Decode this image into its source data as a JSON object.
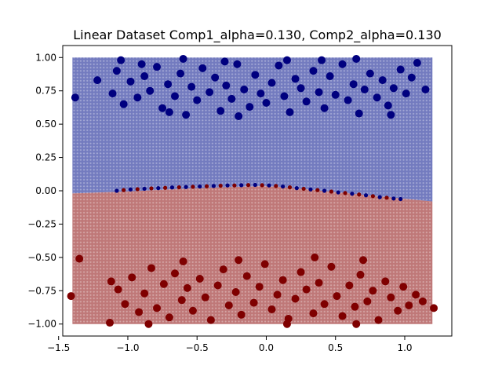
{
  "chart_data": {
    "type": "scatter",
    "title": "Linear Dataset Comp1_alpha=0.130, Comp2_alpha=0.130",
    "xlabel": "",
    "ylabel": "",
    "xlim": [
      -1.47,
      1.34
    ],
    "ylim": [
      -1.09,
      1.09
    ],
    "x_ticks": [
      -1.5,
      -1.0,
      -0.5,
      0.0,
      0.5,
      1.0
    ],
    "x_tick_labels": [
      "−1.5",
      "−1.0",
      "−0.5",
      "0.0",
      "0.5",
      "1.0"
    ],
    "y_ticks": [
      -1.0,
      -0.75,
      -0.5,
      -0.25,
      0.0,
      0.25,
      0.5,
      0.75,
      1.0
    ],
    "y_tick_labels": [
      "−1.00",
      "−0.75",
      "−0.50",
      "−0.25",
      "0.00",
      "0.25",
      "0.50",
      "0.75",
      "1.00"
    ],
    "grid": false,
    "legend": "none",
    "background_grid": {
      "x_range": [
        -1.4,
        1.2
      ],
      "y_range": [
        -1.0,
        1.0
      ],
      "classes": [
        "class 0 (blue)",
        "class 1 (red)"
      ],
      "colors": [
        "#1f2a8a",
        "#8c1c1c"
      ],
      "decision_boundary": [
        [
          -1.4,
          -0.02
        ],
        [
          -1.0,
          -0.005
        ],
        [
          -0.6,
          0.015
        ],
        [
          -0.2,
          0.03
        ],
        [
          0.0,
          0.035
        ],
        [
          0.2,
          0.02
        ],
        [
          0.5,
          -0.01
        ],
        [
          0.8,
          -0.04
        ],
        [
          1.2,
          -0.08
        ]
      ]
    },
    "series": [
      {
        "color": "#00007f",
        "points": [
          [
            -1.38,
            0.7
          ],
          [
            -1.22,
            0.83
          ],
          [
            -1.11,
            0.73
          ],
          [
            -1.08,
            0.9
          ],
          [
            -1.03,
            0.65
          ],
          [
            -0.98,
            0.82
          ],
          [
            -0.93,
            0.7
          ],
          [
            -0.88,
            0.86
          ],
          [
            -0.84,
            0.75
          ],
          [
            -0.79,
            0.93
          ],
          [
            -0.75,
            0.62
          ],
          [
            -0.71,
            0.8
          ],
          [
            -0.66,
            0.71
          ],
          [
            -0.62,
            0.88
          ],
          [
            -0.58,
            0.57
          ],
          [
            -0.54,
            0.78
          ],
          [
            -0.5,
            0.68
          ],
          [
            -0.46,
            0.92
          ],
          [
            -0.41,
            0.74
          ],
          [
            -0.37,
            0.85
          ],
          [
            -0.33,
            0.6
          ],
          [
            -0.29,
            0.79
          ],
          [
            -0.25,
            0.69
          ],
          [
            -0.21,
            0.95
          ],
          [
            -0.16,
            0.76
          ],
          [
            -0.12,
            0.63
          ],
          [
            -0.08,
            0.87
          ],
          [
            -0.04,
            0.73
          ],
          [
            0.0,
            0.66
          ],
          [
            0.04,
            0.81
          ],
          [
            0.09,
            0.94
          ],
          [
            0.13,
            0.71
          ],
          [
            0.17,
            0.59
          ],
          [
            0.21,
            0.84
          ],
          [
            0.25,
            0.77
          ],
          [
            0.29,
            0.67
          ],
          [
            0.34,
            0.9
          ],
          [
            0.38,
            0.74
          ],
          [
            0.42,
            0.62
          ],
          [
            0.46,
            0.86
          ],
          [
            0.5,
            0.72
          ],
          [
            0.55,
            0.95
          ],
          [
            0.59,
            0.68
          ],
          [
            0.63,
            0.8
          ],
          [
            0.67,
            0.58
          ],
          [
            0.71,
            0.76
          ],
          [
            0.75,
            0.88
          ],
          [
            0.8,
            0.7
          ],
          [
            0.84,
            0.83
          ],
          [
            0.88,
            0.64
          ],
          [
            0.92,
            0.77
          ],
          [
            0.97,
            0.91
          ],
          [
            1.01,
            0.73
          ],
          [
            1.05,
            0.85
          ],
          [
            1.09,
            0.96
          ],
          [
            1.15,
            0.76
          ],
          [
            -0.9,
            0.95
          ],
          [
            -0.6,
            0.99
          ],
          [
            0.15,
            0.98
          ],
          [
            0.65,
            0.99
          ],
          [
            -0.3,
            0.97
          ],
          [
            0.4,
            0.98
          ],
          [
            -1.05,
            0.98
          ],
          [
            0.9,
            0.57
          ],
          [
            -0.2,
            0.56
          ],
          [
            -0.7,
            0.59
          ]
        ]
      },
      {
        "color": "#7f0000",
        "points": [
          [
            -1.41,
            -0.79
          ],
          [
            -1.35,
            -0.51
          ],
          [
            -1.13,
            -0.99
          ],
          [
            -1.12,
            -0.68
          ],
          [
            -1.07,
            -0.74
          ],
          [
            -1.02,
            -0.85
          ],
          [
            -0.97,
            -0.65
          ],
          [
            -0.92,
            -0.91
          ],
          [
            -0.88,
            -0.77
          ],
          [
            -0.83,
            -0.58
          ],
          [
            -0.79,
            -0.88
          ],
          [
            -0.74,
            -0.7
          ],
          [
            -0.7,
            -0.95
          ],
          [
            -0.66,
            -0.62
          ],
          [
            -0.61,
            -0.82
          ],
          [
            -0.57,
            -0.73
          ],
          [
            -0.53,
            -0.9
          ],
          [
            -0.48,
            -0.66
          ],
          [
            -0.44,
            -0.8
          ],
          [
            -0.4,
            -0.97
          ],
          [
            -0.35,
            -0.71
          ],
          [
            -0.31,
            -0.59
          ],
          [
            -0.27,
            -0.86
          ],
          [
            -0.22,
            -0.76
          ],
          [
            -0.18,
            -0.93
          ],
          [
            -0.14,
            -0.64
          ],
          [
            -0.09,
            -0.84
          ],
          [
            -0.05,
            -0.72
          ],
          [
            -0.01,
            -0.55
          ],
          [
            0.04,
            -0.89
          ],
          [
            0.08,
            -0.78
          ],
          [
            0.12,
            -0.67
          ],
          [
            0.16,
            -0.96
          ],
          [
            0.21,
            -0.81
          ],
          [
            0.25,
            -0.61
          ],
          [
            0.29,
            -0.74
          ],
          [
            0.34,
            -0.92
          ],
          [
            0.38,
            -0.69
          ],
          [
            0.42,
            -0.85
          ],
          [
            0.47,
            -0.57
          ],
          [
            0.51,
            -0.79
          ],
          [
            0.55,
            -0.94
          ],
          [
            0.6,
            -0.71
          ],
          [
            0.64,
            -0.87
          ],
          [
            0.68,
            -0.63
          ],
          [
            0.73,
            -0.83
          ],
          [
            0.77,
            -0.75
          ],
          [
            0.81,
            -0.97
          ],
          [
            0.86,
            -0.68
          ],
          [
            0.9,
            -0.8
          ],
          [
            0.95,
            -0.9
          ],
          [
            0.99,
            -0.72
          ],
          [
            1.03,
            -0.86
          ],
          [
            1.08,
            -0.78
          ],
          [
            1.13,
            -0.83
          ],
          [
            1.21,
            -0.88
          ],
          [
            -0.85,
            -1.0
          ],
          [
            -0.2,
            -0.52
          ],
          [
            0.35,
            -0.5
          ],
          [
            0.7,
            -0.52
          ],
          [
            -0.6,
            -0.53
          ],
          [
            0.15,
            -1.0
          ],
          [
            0.65,
            -1.0
          ]
        ]
      },
      {
        "name": "",
        "color": "#00007f",
        "marker": "small",
        "points": [
          [
            -1.08,
            0.0
          ],
          [
            -0.98,
            0.01
          ],
          [
            -0.88,
            0.015
          ],
          [
            -0.78,
            0.02
          ],
          [
            -0.68,
            0.025
          ],
          [
            -0.58,
            0.028
          ],
          [
            -0.48,
            0.032
          ],
          [
            -0.38,
            0.036
          ],
          [
            -0.28,
            0.04
          ],
          [
            -0.18,
            0.042
          ],
          [
            -0.08,
            0.044
          ],
          [
            0.02,
            0.04
          ],
          [
            0.12,
            0.032
          ],
          [
            0.22,
            0.02
          ],
          [
            0.32,
            0.01
          ],
          [
            0.42,
            0.0
          ],
          [
            0.52,
            -0.012
          ],
          [
            0.62,
            -0.022
          ],
          [
            0.72,
            -0.034
          ],
          [
            0.82,
            -0.048
          ],
          [
            0.92,
            -0.058
          ],
          [
            0.97,
            -0.062
          ]
        ]
      },
      {
        "name": "",
        "color": "#7f0000",
        "marker": "small",
        "points": [
          [
            -1.03,
            0.005
          ],
          [
            -0.93,
            0.012
          ],
          [
            -0.83,
            0.018
          ],
          [
            -0.73,
            0.022
          ],
          [
            -0.63,
            0.026
          ],
          [
            -0.53,
            0.03
          ],
          [
            -0.43,
            0.034
          ],
          [
            -0.33,
            0.038
          ],
          [
            -0.23,
            0.04
          ],
          [
            -0.13,
            0.043
          ],
          [
            -0.03,
            0.042
          ],
          [
            0.07,
            0.036
          ],
          [
            0.17,
            0.026
          ],
          [
            0.27,
            0.015
          ],
          [
            0.37,
            0.005
          ],
          [
            0.47,
            -0.006
          ],
          [
            0.57,
            -0.017
          ],
          [
            0.67,
            -0.028
          ],
          [
            0.77,
            -0.04
          ],
          [
            0.87,
            -0.052
          ]
        ]
      }
    ]
  }
}
